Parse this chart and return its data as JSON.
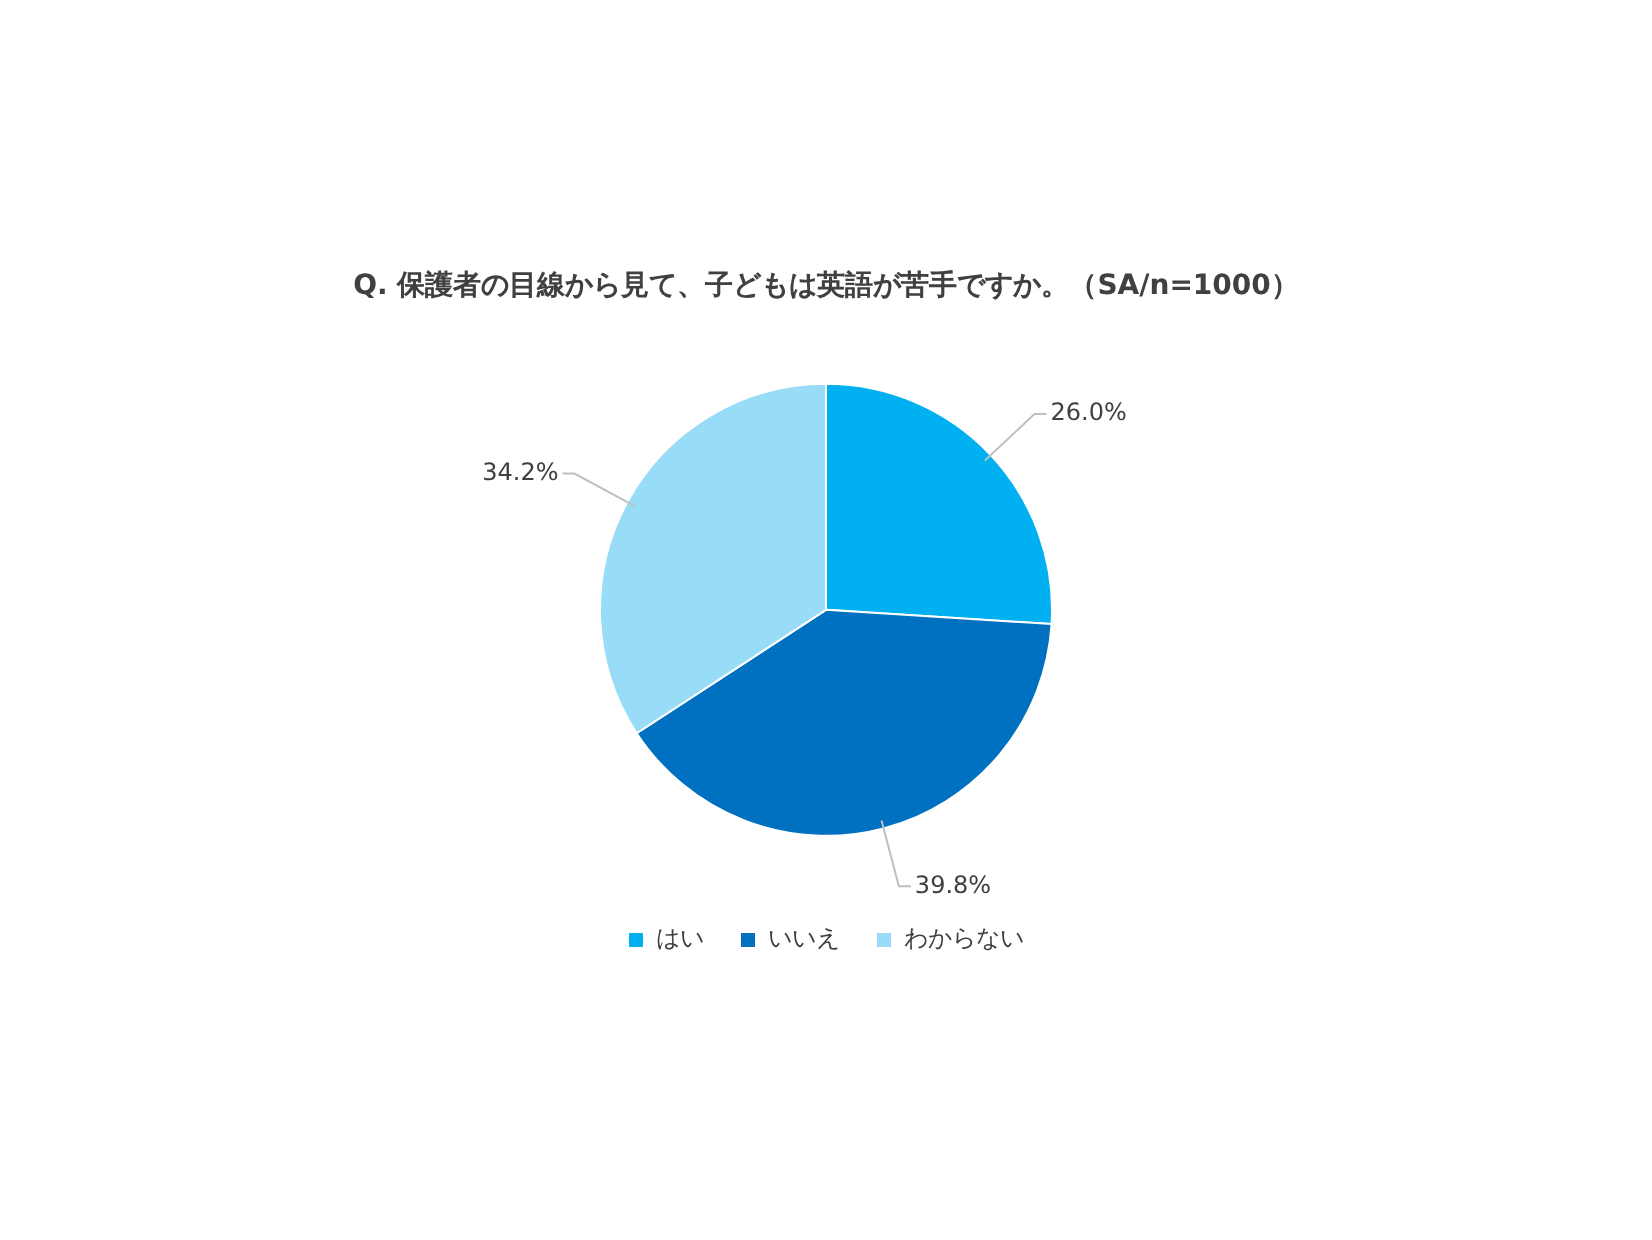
{
  "chart_data": {
    "type": "pie",
    "title": "Q. 保護者の目線から見て、子どもは英語が苦手ですか。（SA/n=1000）",
    "categories": [
      "はい",
      "いいえ",
      "わからない"
    ],
    "values": [
      26.0,
      39.8,
      34.2
    ],
    "colors": [
      "#00b0f0",
      "#0070c0",
      "#99dcf7"
    ],
    "value_labels": [
      "26.0%",
      "39.8%",
      "34.2%"
    ],
    "legend": "bottom"
  }
}
